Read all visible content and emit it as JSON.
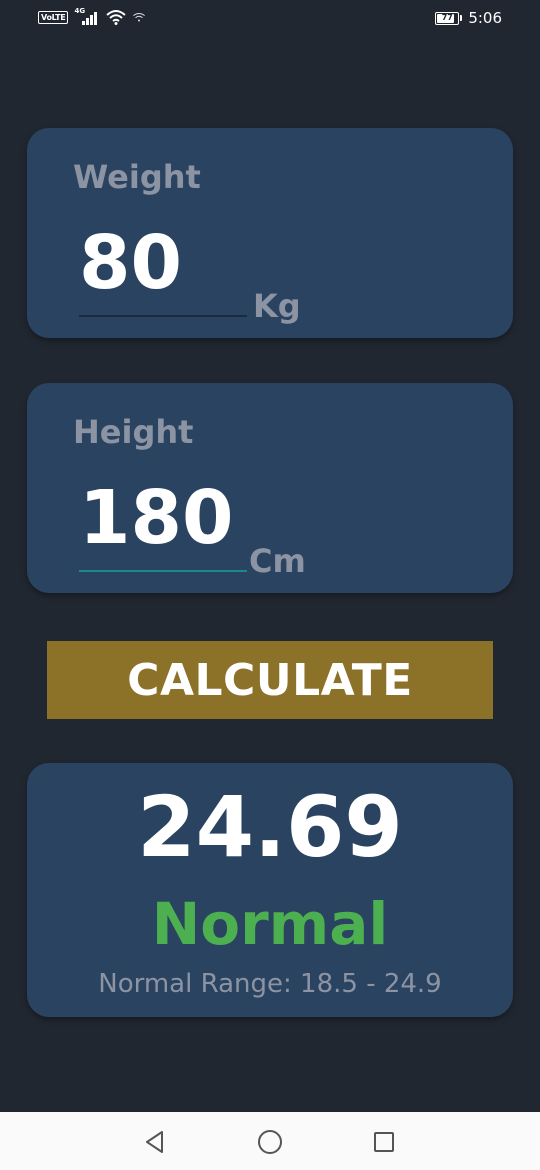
{
  "status_bar": {
    "volte": "VoLTE",
    "network": "4G",
    "battery": "77",
    "time": "5:06"
  },
  "weight": {
    "label": "Weight",
    "value": "80",
    "unit": "Kg"
  },
  "height": {
    "label": "Height",
    "value": "180",
    "unit": "Cm"
  },
  "calculate_button": {
    "label": "CALCULATE"
  },
  "result": {
    "bmi": "24.69",
    "category": "Normal",
    "range": "Normal Range: 18.5 - 24.9"
  },
  "colors": {
    "background": "#212731",
    "card": "#2A4361",
    "button": "#8C7129",
    "normal": "#4CAF50",
    "muted": "#8C94A3",
    "accent_underline": "#178A8A"
  },
  "nav_bar": {
    "back_icon": "triangle-back-icon",
    "home_icon": "circle-home-icon",
    "recent_icon": "square-recents-icon"
  }
}
